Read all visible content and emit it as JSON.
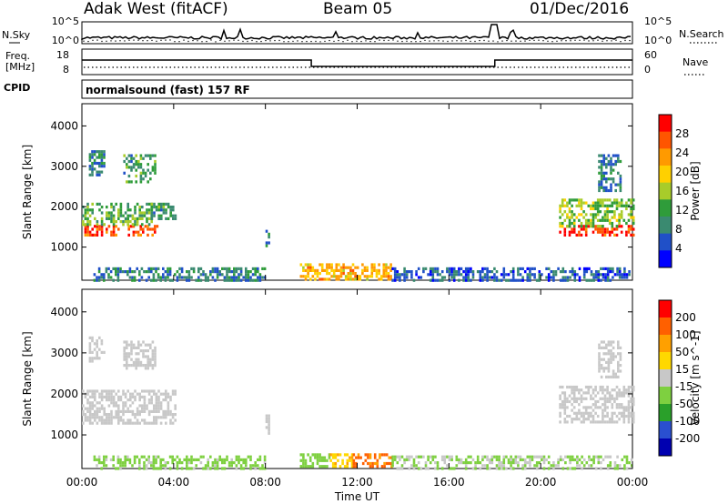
{
  "header": {
    "title": "Adak West (fitACF)",
    "beam": "Beam 05",
    "date": "01/Dec/2016"
  },
  "top_panels": {
    "nsky": {
      "label": "N.Sky",
      "left_ticks": [
        "10^5",
        "10^0"
      ],
      "right_ticks": [
        "10^5",
        "10^0"
      ],
      "right_label": "N.Search"
    },
    "freq": {
      "label": "Freq.",
      "unit": "[MHz]",
      "left_ticks": [
        "18",
        "8"
      ],
      "right_ticks": [
        "60",
        "0"
      ],
      "right_label": "Nave"
    },
    "cpid": {
      "label": "CPID",
      "program": "normalsound (fast) 157 RF"
    }
  },
  "colors": {
    "power_scale": [
      "#0000ff",
      "#2050c8",
      "#3a8a70",
      "#2f9c3a",
      "#a8cc2a",
      "#ffd000",
      "#ff9a00",
      "#ff5500",
      "#ff0000"
    ],
    "velocity_scale": [
      "#0000b0",
      "#2a4fd0",
      "#2aa02a",
      "#7ed040",
      "#c8c8c8",
      "#ffd800",
      "#ffa000",
      "#ff6000",
      "#ff0000"
    ]
  },
  "chart_data": [
    {
      "type": "heatmap",
      "name": "power",
      "xlabel": "",
      "ylabel": "Slant Range [km]",
      "x_ticks": [
        "00:00",
        "04:00",
        "08:00",
        "12:00",
        "16:00",
        "20:00",
        "00:00"
      ],
      "xlim_hours": [
        0,
        24
      ],
      "ylim_km": [
        180,
        4550
      ],
      "y_ticks": [
        1000,
        2000,
        3000,
        4000
      ],
      "colorbar": {
        "label": "Power [dB]",
        "ticks": [
          "28",
          "24",
          "20",
          "16",
          "12",
          "8",
          "4"
        ],
        "range": [
          0,
          30
        ]
      },
      "echo_regions": [
        {
          "t": [
            0.0,
            1.6
          ],
          "r": [
            1300,
            1550
          ],
          "value": 26
        },
        {
          "t": [
            2.0,
            3.3
          ],
          "r": [
            1300,
            1550
          ],
          "value": 24
        },
        {
          "t": [
            0.0,
            3.0
          ],
          "r": [
            1550,
            2100
          ],
          "value": 12
        },
        {
          "t": [
            3.0,
            4.1
          ],
          "r": [
            1700,
            2100
          ],
          "value": 10
        },
        {
          "t": [
            0.3,
            1.0
          ],
          "r": [
            2800,
            3400
          ],
          "value": 8
        },
        {
          "t": [
            1.8,
            3.2
          ],
          "r": [
            2600,
            3300
          ],
          "value": 10
        },
        {
          "t": [
            8.0,
            8.2
          ],
          "r": [
            1000,
            1500
          ],
          "value": 8
        },
        {
          "t": [
            9.5,
            13.5
          ],
          "r": [
            200,
            600
          ],
          "value": 20
        },
        {
          "t": [
            0.5,
            8.0
          ],
          "r": [
            200,
            500
          ],
          "value": 8
        },
        {
          "t": [
            13.5,
            24.0
          ],
          "r": [
            200,
            500
          ],
          "value": 6
        },
        {
          "t": [
            20.8,
            24.0
          ],
          "r": [
            1300,
            1550
          ],
          "value": 26
        },
        {
          "t": [
            20.8,
            24.0
          ],
          "r": [
            1550,
            2200
          ],
          "value": 14
        },
        {
          "t": [
            22.5,
            23.5
          ],
          "r": [
            2400,
            3300
          ],
          "value": 8
        }
      ]
    },
    {
      "type": "heatmap",
      "name": "velocity",
      "xlabel": "Time UT",
      "ylabel": "Slant Range [km]",
      "x_ticks": [
        "00:00",
        "04:00",
        "08:00",
        "12:00",
        "16:00",
        "20:00",
        "00:00"
      ],
      "xlim_hours": [
        0,
        24
      ],
      "ylim_km": [
        180,
        4550
      ],
      "y_ticks": [
        1000,
        2000,
        3000,
        4000
      ],
      "colorbar": {
        "label": "Velocity [m s^-1]",
        "ticks": [
          "200",
          "100",
          "50",
          "15",
          "-15",
          "-50",
          "-100",
          "-200"
        ],
        "range": [
          -250,
          250
        ]
      },
      "echo_regions": [
        {
          "t": [
            0.0,
            4.1
          ],
          "r": [
            1300,
            2100
          ],
          "value": 0
        },
        {
          "t": [
            0.3,
            1.0
          ],
          "r": [
            2800,
            3400
          ],
          "value": 0
        },
        {
          "t": [
            1.8,
            3.2
          ],
          "r": [
            2600,
            3300
          ],
          "value": 0
        },
        {
          "t": [
            8.0,
            8.2
          ],
          "r": [
            1000,
            1500
          ],
          "value": 0
        },
        {
          "t": [
            9.5,
            10.8
          ],
          "r": [
            200,
            550
          ],
          "value": -60
        },
        {
          "t": [
            10.8,
            11.8
          ],
          "r": [
            200,
            550
          ],
          "value": 70
        },
        {
          "t": [
            11.8,
            13.5
          ],
          "r": [
            200,
            550
          ],
          "value": 150
        },
        {
          "t": [
            0.5,
            8.0
          ],
          "r": [
            200,
            500
          ],
          "value": -40
        },
        {
          "t": [
            13.5,
            24.0
          ],
          "r": [
            200,
            500
          ],
          "value": -30
        },
        {
          "t": [
            20.8,
            24.0
          ],
          "r": [
            1300,
            2200
          ],
          "value": 0
        },
        {
          "t": [
            22.5,
            23.5
          ],
          "r": [
            2400,
            3300
          ],
          "value": 0
        }
      ]
    }
  ]
}
